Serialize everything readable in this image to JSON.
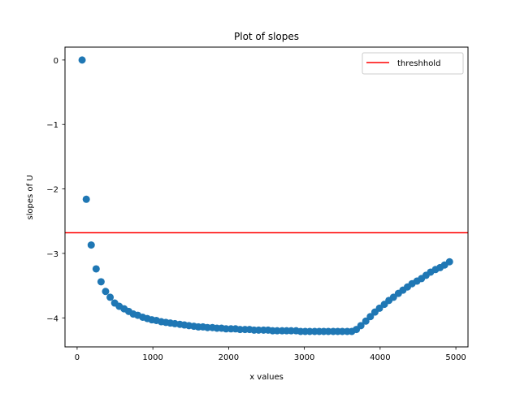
{
  "chart_data": {
    "type": "scatter",
    "title": "Plot of slopes",
    "xlabel": "x values",
    "ylabel": "slopes of U",
    "xlim": [
      -160,
      5160
    ],
    "ylim": [
      -4.45,
      0.2
    ],
    "x_ticks": [
      0,
      1000,
      2000,
      3000,
      4000,
      5000
    ],
    "y_ticks": [
      0,
      -1,
      -2,
      -3,
      -4
    ],
    "y_tick_labels": [
      "0",
      "−1",
      "−2",
      "−3",
      "−4"
    ],
    "grid": false,
    "legend": {
      "position": "top-right",
      "entries": [
        {
          "label": "threshhold",
          "type": "line",
          "color": "#ff0000"
        }
      ]
    },
    "threshold": {
      "name": "threshhold",
      "y": -2.68,
      "color": "#ff0000"
    },
    "series": [
      {
        "color": "#1f77b4",
        "x": [
          66,
          121,
          186,
          251,
          316,
          376,
          436,
          496,
          556,
          621,
          681,
          741,
          801,
          866,
          926,
          986,
          1046,
          1111,
          1171,
          1231,
          1291,
          1356,
          1416,
          1476,
          1541,
          1601,
          1661,
          1721,
          1786,
          1846,
          1906,
          1966,
          2031,
          2091,
          2151,
          2216,
          2276,
          2336,
          2396,
          2461,
          2521,
          2581,
          2641,
          2706,
          2766,
          2826,
          2891,
          2951,
          3011,
          3071,
          3136,
          3196,
          3256,
          3316,
          3381,
          3441,
          3501,
          3566,
          3626,
          3686,
          3746,
          3811,
          3871,
          3931,
          3991,
          4056,
          4116,
          4176,
          4241,
          4301,
          4361,
          4421,
          4486,
          4546,
          4606,
          4666,
          4731,
          4791,
          4851,
          4916
        ],
        "y": [
          0.0,
          -2.16,
          -2.87,
          -3.24,
          -3.44,
          -3.59,
          -3.68,
          -3.77,
          -3.82,
          -3.86,
          -3.9,
          -3.94,
          -3.96,
          -3.99,
          -4.01,
          -4.03,
          -4.04,
          -4.06,
          -4.07,
          -4.08,
          -4.09,
          -4.1,
          -4.11,
          -4.12,
          -4.13,
          -4.14,
          -4.14,
          -4.15,
          -4.15,
          -4.16,
          -4.16,
          -4.17,
          -4.17,
          -4.17,
          -4.18,
          -4.18,
          -4.18,
          -4.19,
          -4.19,
          -4.19,
          -4.19,
          -4.2,
          -4.2,
          -4.2,
          -4.2,
          -4.2,
          -4.2,
          -4.21,
          -4.21,
          -4.21,
          -4.21,
          -4.21,
          -4.21,
          -4.21,
          -4.21,
          -4.21,
          -4.21,
          -4.21,
          -4.21,
          -4.18,
          -4.12,
          -4.05,
          -3.98,
          -3.91,
          -3.85,
          -3.79,
          -3.73,
          -3.68,
          -3.62,
          -3.57,
          -3.52,
          -3.47,
          -3.43,
          -3.39,
          -3.34,
          -3.29,
          -3.25,
          -3.22,
          -3.18,
          -3.13
        ]
      }
    ]
  }
}
